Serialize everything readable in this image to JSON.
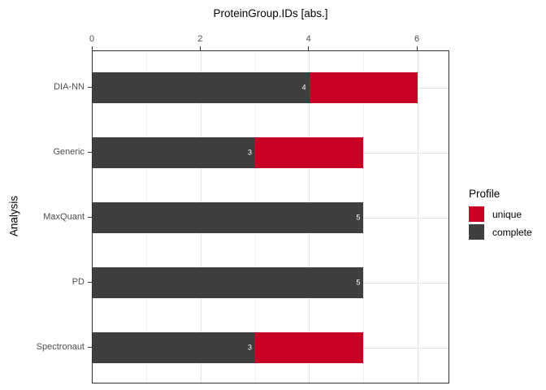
{
  "chart_data": {
    "type": "bar",
    "orientation": "horizontal",
    "stacked": true,
    "title": "ProteinGroup.IDs [abs.]",
    "xlabel": "",
    "ylabel": "Analysis",
    "categories": [
      "DIA-NN",
      "Generic",
      "MaxQuant",
      "PD",
      "Spectronaut"
    ],
    "series": [
      {
        "name": "complete",
        "color": "#3F3F3F",
        "values": [
          4,
          3,
          5,
          5,
          3
        ],
        "bar_labels": [
          "4",
          "3",
          "5",
          "5",
          "3"
        ]
      },
      {
        "name": "unique",
        "color": "#C90026",
        "values": [
          2,
          2,
          0,
          0,
          2
        ],
        "bar_labels": [
          "",
          "",
          "",
          "",
          ""
        ]
      }
    ],
    "xlim": [
      0,
      6.6
    ],
    "x_tick_labels": [
      "0",
      "2",
      "4",
      "6"
    ],
    "x_tick_values": [
      0,
      2,
      4,
      6
    ],
    "x_minor_tick_values": [
      1,
      3,
      5
    ],
    "grid": true,
    "legend": {
      "title": "Profile",
      "position": "right",
      "entries": [
        {
          "label": "unique",
          "color": "#C90026"
        },
        {
          "label": "complete",
          "color": "#3F3F3F"
        }
      ]
    },
    "colors": {
      "panel_border": "#333333",
      "grid_major": "#E3E3E3",
      "grid_minor": "#F0F0F0",
      "tick_label": "#4D4D4D",
      "title_text": "#000000",
      "bar_label": "#FFFFFF"
    }
  }
}
